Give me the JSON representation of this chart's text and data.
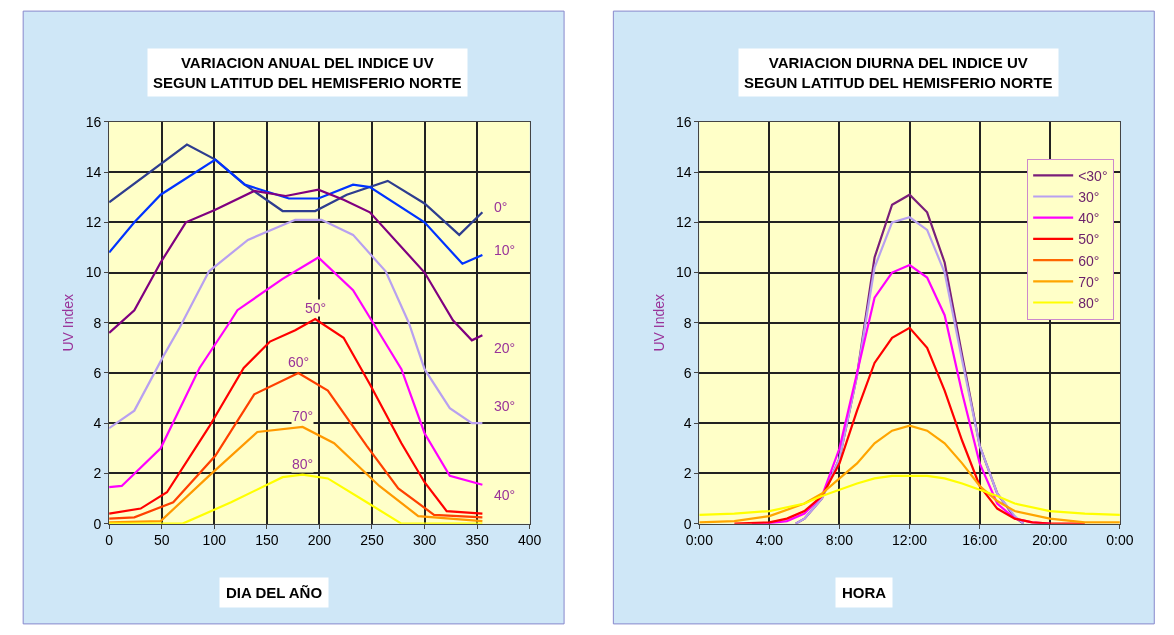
{
  "chart_data": [
    {
      "type": "line",
      "title": "VARIACION ANUAL DEL INDICE UV\nSEGUN LATITUD DEL HEMISFERIO NORTE",
      "xlabel": "DIA DEL AÑO",
      "ylabel": "UV Index",
      "xlim": [
        0,
        400
      ],
      "xticks": [
        0,
        50,
        100,
        150,
        200,
        250,
        300,
        350,
        400
      ],
      "ylim": [
        0,
        16
      ],
      "yticks": [
        0,
        2,
        4,
        6,
        8,
        10,
        12,
        14,
        16
      ],
      "grid": true,
      "series": [
        {
          "name": "0°",
          "color": "#2e3d8f",
          "x": [
            0,
            74,
            101,
            129,
            165,
            196,
            226,
            265,
            300,
            333,
            355
          ],
          "values": [
            12.8,
            15.1,
            14.5,
            13.5,
            12.45,
            12.45,
            13.1,
            13.65,
            12.75,
            11.5,
            12.4
          ]
        },
        {
          "name": "10°",
          "color": "#0033ff",
          "x": [
            0,
            24,
            49,
            101,
            129,
            171,
            199,
            232,
            248,
            300,
            336,
            355
          ],
          "values": [
            10.8,
            12,
            13.1,
            14.5,
            13.5,
            12.95,
            12.95,
            13.5,
            13.4,
            12,
            10.35,
            10.7
          ]
        },
        {
          "name": "20°",
          "color": "#800080",
          "x": [
            0,
            24,
            49,
            73,
            101,
            138,
            168,
            199,
            223,
            248,
            300,
            327,
            345,
            355
          ],
          "values": [
            7.6,
            8.5,
            10.4,
            12,
            12.5,
            13.25,
            13.05,
            13.3,
            12.9,
            12.4,
            10,
            8.1,
            7.3,
            7.5
          ]
        },
        {
          "name": "30°",
          "color": "#b8a0f0",
          "x": [
            0,
            24,
            52,
            67,
            95,
            132,
            177,
            202,
            232,
            263,
            285,
            300,
            324,
            345,
            355
          ],
          "values": [
            3.8,
            4.5,
            6.7,
            7.8,
            10.05,
            11.3,
            12.1,
            12.1,
            11.5,
            10.05,
            8,
            6.15,
            4.6,
            4,
            4
          ]
        },
        {
          "name": "40°",
          "color": "#ff00ff",
          "x": [
            0,
            12,
            49,
            86,
            116,
            122,
            165,
            199,
            232,
            251,
            278,
            300,
            324,
            355
          ],
          "values": [
            1.45,
            1.5,
            3,
            6.2,
            8.1,
            8.5,
            9.75,
            10.6,
            9.3,
            8,
            6.15,
            3.6,
            1.9,
            1.55
          ]
        },
        {
          "name": "50°",
          "color": "#ff0000",
          "x": [
            0,
            30,
            55,
            95,
            128,
            153,
            177,
            196,
            223,
            248,
            278,
            300,
            321,
            355
          ],
          "values": [
            0.4,
            0.6,
            1.25,
            3.85,
            6.2,
            7.25,
            7.7,
            8.15,
            7.4,
            5.55,
            3.2,
            1.65,
            0.5,
            0.4
          ]
        },
        {
          "name": "60°",
          "color": "#ff4000",
          "x": [
            0,
            24,
            61,
            101,
            138,
            180,
            208,
            245,
            275,
            309,
            355
          ],
          "values": [
            0.2,
            0.25,
            0.85,
            2.7,
            5.15,
            6,
            5.3,
            3.1,
            1.4,
            0.35,
            0.25
          ]
        },
        {
          "name": "70°",
          "color": "#ff9900",
          "x": [
            0,
            49,
            95,
            141,
            184,
            214,
            257,
            294,
            355
          ],
          "values": [
            0.05,
            0.1,
            1.9,
            3.65,
            3.85,
            3.2,
            1.5,
            0.3,
            0.1
          ]
        },
        {
          "name": "80°",
          "color": "#ffff00",
          "x": [
            0,
            70,
            116,
            165,
            184,
            208,
            245,
            278,
            355
          ],
          "values": [
            0,
            0,
            0.85,
            1.85,
            1.95,
            1.8,
            0.85,
            0,
            0
          ]
        }
      ]
    },
    {
      "type": "line",
      "title": "VARIACION DIURNA DEL INDICE UV\nSEGUN LATITUD DEL HEMISFERIO NORTE",
      "xlabel": "HORA",
      "ylabel": "UV Index",
      "xlim": [
        0,
        24
      ],
      "xticks": [
        {
          "value": 0,
          "label": "0:00"
        },
        {
          "value": 4,
          "label": "4:00"
        },
        {
          "value": 8,
          "label": "8:00"
        },
        {
          "value": 12,
          "label": "12:00"
        },
        {
          "value": 16,
          "label": "16:00"
        },
        {
          "value": 20,
          "label": "20:00"
        },
        {
          "value": 24,
          "label": "0:00"
        }
      ],
      "ylim": [
        0,
        16
      ],
      "yticks": [
        0,
        2,
        4,
        6,
        8,
        10,
        12,
        14,
        16
      ],
      "grid": true,
      "legend": "top right",
      "series": [
        {
          "name": "<30°",
          "color": "#7a1f7a",
          "x": [
            5.5,
            6,
            7,
            8,
            9,
            10,
            11,
            12,
            13,
            14,
            15,
            16,
            17,
            18,
            18.5
          ],
          "values": [
            0,
            0.2,
            1,
            2.6,
            5.9,
            10.6,
            12.7,
            13.1,
            12.4,
            10.4,
            6.7,
            3.1,
            1.2,
            0.25,
            0
          ]
        },
        {
          "name": "30°",
          "color": "#b8a0f0",
          "x": [
            5.5,
            6,
            7,
            8,
            9,
            10,
            11,
            12,
            13,
            14,
            15,
            16,
            17,
            18,
            18.5
          ],
          "values": [
            0,
            0.2,
            1,
            2.6,
            5.9,
            10.2,
            12,
            12.2,
            11.7,
            10,
            6.5,
            3.1,
            1.2,
            0.3,
            0
          ]
        },
        {
          "name": "40°",
          "color": "#ff00ff",
          "x": [
            3,
            4,
            5,
            6,
            7,
            8,
            9,
            10,
            11,
            12,
            13,
            14,
            15,
            16,
            17,
            18,
            19,
            20
          ],
          "values": [
            0,
            0.02,
            0.1,
            0.4,
            1.1,
            3,
            6,
            9,
            10,
            10.3,
            9.8,
            8.3,
            5.2,
            2.4,
            0.8,
            0.2,
            0.05,
            0
          ]
        },
        {
          "name": "50°",
          "color": "#ff0000",
          "x": [
            2,
            4,
            5,
            6,
            7,
            8,
            9,
            10,
            11,
            12,
            13,
            14,
            15,
            16,
            17,
            18,
            19,
            20,
            22
          ],
          "values": [
            0,
            0.05,
            0.2,
            0.5,
            1.1,
            2.4,
            4.5,
            6.4,
            7.4,
            7.8,
            7,
            5.3,
            3.3,
            1.5,
            0.6,
            0.2,
            0.05,
            0,
            0
          ]
        },
        {
          "name": "60°",
          "color": "#ff6600",
          "values": [
            null
          ]
        },
        {
          "name": "70°",
          "color": "#ffa500",
          "x": [
            0,
            2,
            4,
            6,
            7,
            8,
            9,
            10,
            11,
            12,
            13,
            14,
            15,
            16,
            17,
            18,
            20,
            22,
            24
          ],
          "values": [
            0.05,
            0.1,
            0.3,
            0.8,
            1.2,
            1.8,
            2.4,
            3.2,
            3.7,
            3.9,
            3.7,
            3.2,
            2.4,
            1.5,
            0.9,
            0.5,
            0.2,
            0.05,
            0.05
          ]
        },
        {
          "name": "80°",
          "color": "#ffff00",
          "x": [
            0,
            2,
            4,
            6,
            7,
            8,
            9,
            10,
            11,
            12,
            13,
            14,
            15,
            16,
            17,
            18,
            20,
            22,
            24
          ],
          "values": [
            0.35,
            0.4,
            0.5,
            0.8,
            1.1,
            1.35,
            1.6,
            1.8,
            1.9,
            1.9,
            1.9,
            1.8,
            1.6,
            1.35,
            1.1,
            0.8,
            0.5,
            0.4,
            0.35
          ]
        }
      ]
    }
  ]
}
